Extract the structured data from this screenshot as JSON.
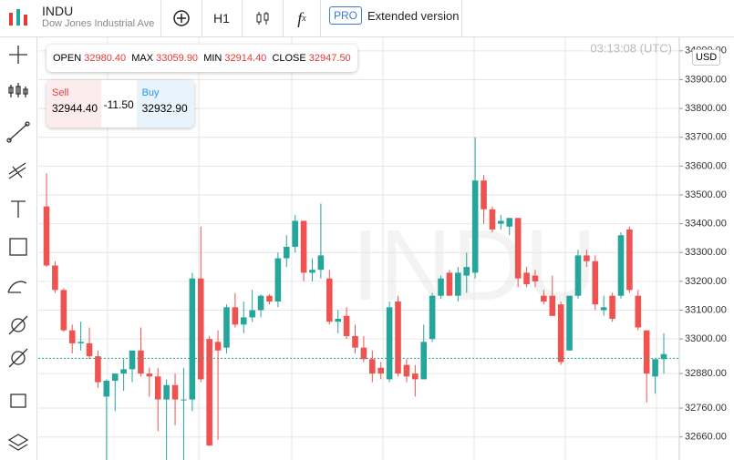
{
  "header": {
    "symbol": "INDU",
    "name": "Dow Jones Industrial Ave",
    "interval": "H1",
    "pro": "PRO",
    "extended": "Extended version"
  },
  "ohlc_info": {
    "open_label": "OPEN",
    "open": "32980.40",
    "max_label": "MAX",
    "max": "33059.90",
    "min_label": "MIN",
    "min": "32914.40",
    "close_label": "CLOSE",
    "close": "32947.50"
  },
  "trade": {
    "sell_label": "Sell",
    "sell": "32944.40",
    "spread": "-11.50",
    "buy_label": "Buy",
    "buy": "32932.90"
  },
  "clock": "03:13:08 (UTC)",
  "currency": "USD",
  "watermark": "INDU",
  "chart_data": {
    "type": "candlestick",
    "up_color": "#26a69a",
    "down_color": "#ef5350",
    "price_line": 32932.9,
    "ylim": [
      32580,
      34050
    ],
    "yticks": [
      {
        "value": 34000,
        "label": "34000.00"
      },
      {
        "value": 33900,
        "label": "33900.00"
      },
      {
        "value": 33800,
        "label": "33800.00"
      },
      {
        "value": 33700,
        "label": "33700.00"
      },
      {
        "value": 33600,
        "label": "33600.00"
      },
      {
        "value": 33500,
        "label": "33500.00"
      },
      {
        "value": 33400,
        "label": "33400.00"
      },
      {
        "value": 33300,
        "label": "33300.00"
      },
      {
        "value": 33200,
        "label": "33200.00"
      },
      {
        "value": 33100,
        "label": "33100.00"
      },
      {
        "value": 33000,
        "label": "33000.00"
      },
      {
        "value": 32880,
        "label": "32880.00"
      },
      {
        "value": 32760,
        "label": "32760.00"
      },
      {
        "value": 32660,
        "label": "32660.00"
      }
    ],
    "open": [
      33460,
      33255,
      33170,
      33030,
      32985,
      32985,
      32940,
      32800,
      32855,
      32880,
      32895,
      32960,
      32880,
      32870,
      32790,
      32840,
      32790,
      32790,
      33210,
      33000,
      32990,
      32970,
      33110,
      33050,
      33075,
      33100,
      33150,
      33130,
      33280,
      33320,
      33410,
      33230,
      33240,
      33210,
      33060,
      33080,
      33010,
      32970,
      32930,
      32900,
      32860,
      33130,
      32910,
      32880,
      32860,
      33000,
      33150,
      33230,
      33150,
      33220,
      33230,
      33550,
      33450,
      33400,
      33390,
      33420,
      33230,
      33220,
      33150,
      33150,
      33120,
      32960,
      33150,
      33290,
      33270,
      33100,
      33150,
      33150,
      33380,
      33150,
      33030,
      32870,
      32930
    ],
    "high": [
      33575,
      33270,
      33175,
      33050,
      33060,
      33040,
      32960,
      32860,
      32880,
      32930,
      32960,
      33040,
      32900,
      32900,
      32860,
      32880,
      32900,
      33230,
      33390,
      33010,
      33030,
      33120,
      33160,
      33130,
      33170,
      33155,
      33155,
      33300,
      33360,
      33430,
      33410,
      33280,
      33470,
      33240,
      33100,
      33110,
      33050,
      33010,
      32960,
      32920,
      33130,
      33150,
      32930,
      32910,
      33050,
      33160,
      33220,
      33240,
      33250,
      33300,
      33700,
      33570,
      33460,
      33430,
      33420,
      33420,
      33250,
      33240,
      33170,
      33220,
      33130,
      33140,
      33310,
      33310,
      33290,
      33150,
      33160,
      33370,
      33390,
      33170,
      33030,
      32920,
      33020
    ],
    "low": [
      33250,
      33160,
      33025,
      32950,
      32960,
      32930,
      32830,
      32580,
      32750,
      32820,
      32850,
      32870,
      32800,
      32680,
      32580,
      32700,
      32580,
      32750,
      32850,
      32630,
      32650,
      32950,
      33040,
      33020,
      33060,
      33075,
      33120,
      33110,
      33250,
      33300,
      33200,
      33200,
      33210,
      33050,
      33020,
      33000,
      32950,
      32920,
      32850,
      32860,
      32850,
      32870,
      32850,
      32800,
      32860,
      32990,
      33140,
      33150,
      33130,
      33160,
      33210,
      33400,
      33370,
      33380,
      33360,
      33180,
      33180,
      33180,
      33120,
      33080,
      32910,
      32960,
      33140,
      33250,
      33100,
      33080,
      33060,
      33140,
      33160,
      33030,
      32780,
      32810,
      32880
    ],
    "close": [
      33255,
      33170,
      33030,
      32985,
      32990,
      32940,
      32850,
      32855,
      32880,
      32895,
      32960,
      32880,
      32870,
      32790,
      32840,
      32790,
      32790,
      33210,
      32860,
      32630,
      32960,
      33110,
      33050,
      33075,
      33100,
      33150,
      33130,
      33280,
      33320,
      33410,
      33230,
      33240,
      33290,
      33060,
      33070,
      33010,
      32970,
      32930,
      32880,
      32880,
      33110,
      32880,
      32870,
      32860,
      32990,
      33150,
      33210,
      33150,
      33230,
      33250,
      33550,
      33450,
      33380,
      33410,
      33420,
      33210,
      33190,
      33200,
      33130,
      33080,
      32920,
      33150,
      33290,
      33270,
      33120,
      33110,
      33070,
      33360,
      33170,
      33040,
      32880,
      32930,
      32947.5
    ]
  }
}
